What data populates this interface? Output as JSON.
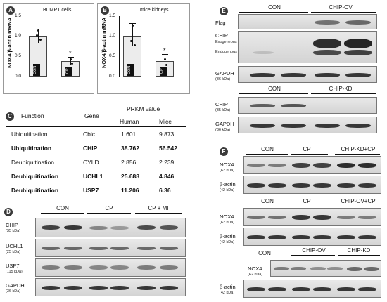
{
  "panels": {
    "a": {
      "badge": "A",
      "title": "BUMPT cells",
      "ylabel": "NOX4/β-actin mRNA",
      "ticks": [
        "1.5",
        "1.0",
        "0.5",
        "0.0"
      ],
      "bars": [
        "CON",
        "CP"
      ],
      "star": "*"
    },
    "b": {
      "badge": "B",
      "title": "mice kidneys",
      "ylabel": "NOX4/β-actin mRNA",
      "ticks": [
        "1.5",
        "1.0",
        "0.5",
        "0.0"
      ],
      "bars": [
        "CON",
        "CP"
      ],
      "star": "*"
    },
    "c": {
      "badge": "C",
      "headers": {
        "function": "Function",
        "gene": "Gene",
        "prkm": "PRKM value",
        "human": "Human",
        "mice": "Mice"
      },
      "rows": [
        {
          "function": "Ubiquitination",
          "gene": "Cblc",
          "human": "1.601",
          "mice": "9.873"
        },
        {
          "function": "Ubiquitination",
          "gene": "CHIP",
          "human": "38.762",
          "mice": "56.542"
        },
        {
          "function": "Deubiquitination",
          "gene": "CYLD",
          "human": "2.856",
          "mice": "2.239"
        },
        {
          "function": "Deubiquitination",
          "gene": "UCHL1",
          "human": "25.688",
          "mice": "4.846"
        },
        {
          "function": "Deubiquitination",
          "gene": "USP7",
          "human": "11.206",
          "mice": "6.36"
        }
      ]
    },
    "d": {
      "badge": "D",
      "groups": [
        "CON",
        "CP",
        "CP + MI"
      ],
      "rows": [
        {
          "name": "CHIP",
          "kda": "(35 kDa)"
        },
        {
          "name": "UCHL1",
          "kda": "(25 kDa)"
        },
        {
          "name": "USP7",
          "kda": "(115 kDa)"
        },
        {
          "name": "GAPDH",
          "kda": "(36 kDa)"
        }
      ]
    },
    "e": {
      "badge": "E",
      "groups_top": [
        "CON",
        "CHIP-OV"
      ],
      "groups_bottom": [
        "CON",
        "CHIP-KD"
      ],
      "flag": "Flag",
      "chip": "CHIP",
      "exo": "Exogeneous",
      "endo": "Endogenous",
      "gapdh": "GAPDH",
      "gapdh_kda": "(36 kDa)",
      "chip_kda": "(35 kDa)"
    },
    "f": {
      "badge": "F",
      "block1": [
        "CON",
        "CP",
        "CHIP-KD+CP"
      ],
      "block2": [
        "CON",
        "CP",
        "CHIP-OV+CP"
      ],
      "block3": [
        "CON",
        "CHIP-OV",
        "CHIP-KD"
      ],
      "nox4": "NOX4",
      "nox4_kda": "(62 kDa)",
      "actin": "β-actin",
      "actin_kda": "(42 kDa)"
    }
  }
}
